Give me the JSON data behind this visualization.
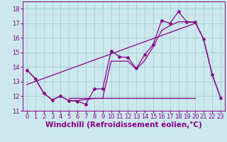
{
  "xlabel": "Windchill (Refroidissement éolien,°C)",
  "bg_color": "#cce8ee",
  "line_color": "#880088",
  "xlim": [
    -0.5,
    23.5
  ],
  "ylim": [
    11.0,
    18.5
  ],
  "yticks": [
    11,
    12,
    13,
    14,
    15,
    16,
    17,
    18
  ],
  "xticks": [
    0,
    1,
    2,
    3,
    4,
    5,
    6,
    7,
    8,
    9,
    10,
    11,
    12,
    13,
    14,
    15,
    16,
    17,
    18,
    19,
    20,
    21,
    22,
    23
  ],
  "series1_x": [
    0,
    1,
    2,
    3,
    4,
    5,
    6,
    7,
    8,
    9,
    10,
    11,
    12,
    13,
    14,
    15,
    16,
    17,
    18,
    19,
    20,
    21,
    22,
    23
  ],
  "series1_y": [
    13.8,
    13.2,
    12.2,
    11.75,
    12.0,
    11.7,
    11.65,
    11.45,
    12.5,
    12.5,
    15.1,
    14.7,
    14.65,
    13.9,
    14.85,
    15.55,
    17.2,
    17.0,
    17.8,
    17.1,
    17.1,
    15.9,
    13.5,
    11.9
  ],
  "series2_x": [
    0,
    1,
    2,
    3,
    4,
    5,
    6,
    8,
    9,
    10,
    11,
    12,
    13,
    14,
    15,
    16,
    17,
    18,
    19,
    20,
    21,
    22,
    23
  ],
  "series2_y": [
    13.8,
    13.2,
    12.2,
    11.75,
    12.0,
    11.7,
    11.7,
    11.85,
    11.85,
    14.4,
    14.4,
    14.4,
    13.85,
    14.45,
    15.4,
    16.5,
    16.85,
    17.1,
    17.1,
    17.05,
    15.9,
    13.5,
    11.9
  ],
  "flat_line_y": 11.9,
  "flat_line_x_start": 5,
  "flat_line_x_end": 20,
  "trend_x": [
    0,
    20
  ],
  "trend_y": [
    12.8,
    17.0
  ],
  "grid_color": "#99cccc",
  "marker": "D",
  "markersize": 2.0,
  "linewidth": 0.9,
  "xlabel_fontsize": 7.5,
  "tick_fontsize": 6.0
}
